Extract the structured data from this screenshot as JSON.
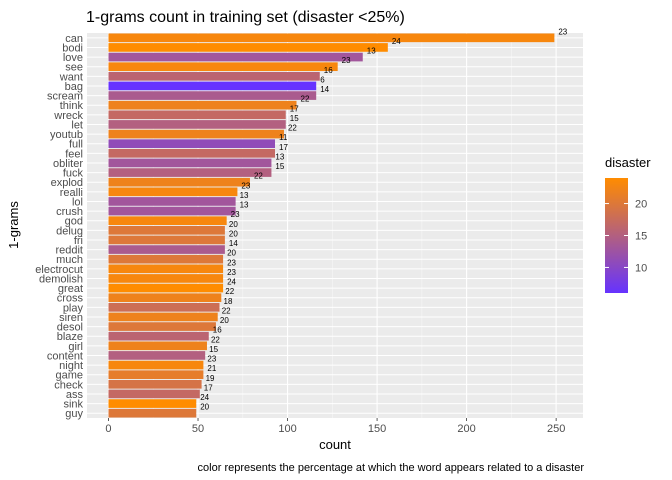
{
  "chart_data": {
    "type": "bar",
    "orientation": "horizontal",
    "title": "1-grams count in training set (disaster <25%)",
    "xlabel": "count",
    "ylabel": "1-grams",
    "caption": "color represents the percentage at which the word appears related to a disaster",
    "xlim": [
      -12,
      265
    ],
    "x_ticks": [
      0,
      50,
      100,
      150,
      200,
      250
    ],
    "grid": true,
    "legend": {
      "title": "disaster",
      "position": "right",
      "range": [
        6,
        24
      ],
      "ticks": [
        10,
        15,
        20
      ],
      "low_color": "#6633ff",
      "high_color": "#ff8c00"
    },
    "categories": [
      "can",
      "bodi",
      "love",
      "see",
      "want",
      "bag",
      "scream",
      "think",
      "wreck",
      "let",
      "youtub",
      "full",
      "feel",
      "obliter",
      "fuck",
      "explod",
      "realli",
      "lol",
      "crush",
      "god",
      "delug",
      "fri",
      "reddit",
      "much",
      "electrocut",
      "demolish",
      "great",
      "cross",
      "play",
      "siren",
      "desol",
      "blaze",
      "girl",
      "content",
      "night",
      "game",
      "check",
      "ass",
      "sink",
      "guy"
    ],
    "values": [
      249,
      156,
      142,
      128,
      118,
      116,
      116,
      105,
      99,
      99,
      98,
      93,
      93,
      91,
      91,
      79,
      72,
      71,
      71,
      66,
      65,
      65,
      65,
      64,
      64,
      64,
      64,
      63,
      62,
      61,
      60,
      56,
      55,
      54,
      53,
      53,
      52,
      51,
      49,
      49
    ],
    "disaster_pct": [
      23,
      24,
      13,
      23,
      16,
      6,
      14,
      22,
      17,
      15,
      22,
      11,
      17,
      13,
      15,
      22,
      23,
      13,
      13,
      23,
      20,
      20,
      14,
      20,
      23,
      23,
      24,
      22,
      18,
      22,
      20,
      16,
      22,
      15,
      23,
      21,
      19,
      17,
      24,
      20
    ]
  }
}
